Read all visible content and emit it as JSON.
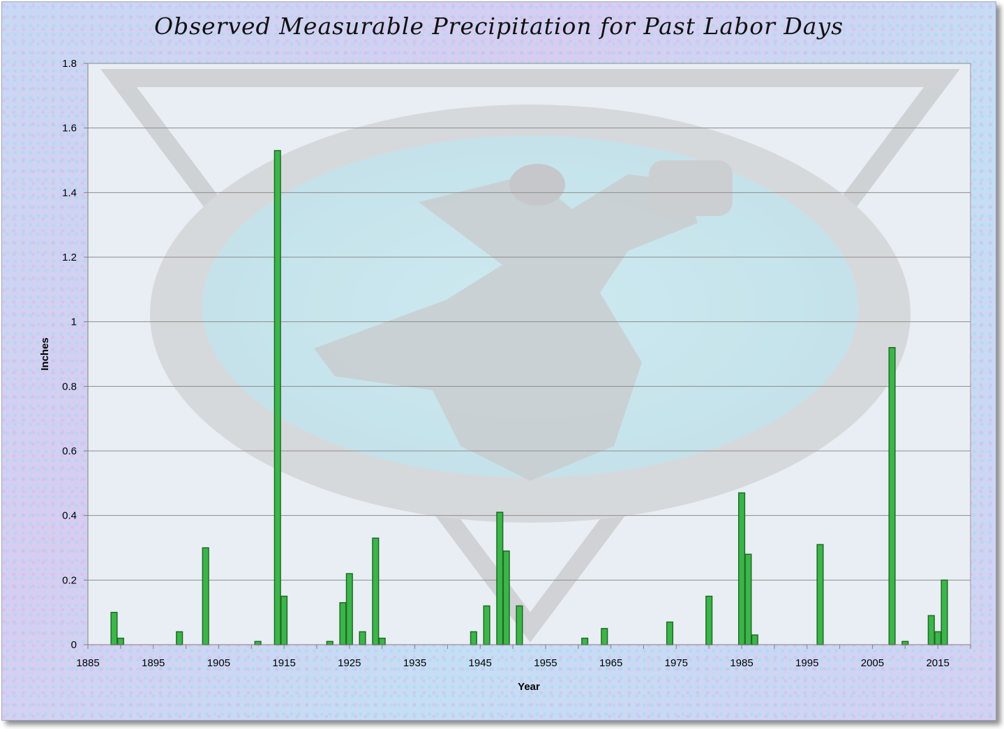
{
  "chart_data": {
    "type": "bar",
    "title": "Observed Measurable Precipitation for Past Labor Days",
    "xlabel": "Year",
    "ylabel": "Inches",
    "xlim": [
      1885,
      2020
    ],
    "ylim": [
      0,
      1.8
    ],
    "x_ticks": [
      "1885",
      "1895",
      "1905",
      "1915",
      "1925",
      "1935",
      "1945",
      "1955",
      "1965",
      "1975",
      "1985",
      "1995",
      "2005",
      "2015"
    ],
    "y_ticks": [
      "0",
      "0.2",
      "0.4",
      "0.6",
      "0.8",
      "1",
      "1.2",
      "1.4",
      "1.6",
      "1.8"
    ],
    "grid": true,
    "legend": "none",
    "bar_color": "#3cb54a",
    "bar_edge_color": "#1e6b24",
    "series": [
      {
        "x": [
          1889,
          1890,
          1899,
          1903,
          1911,
          1914,
          1915,
          1922,
          1924,
          1925,
          1927,
          1929,
          1930,
          1944,
          1946,
          1948,
          1949,
          1951,
          1961,
          1964,
          1974,
          1980,
          1985,
          1986,
          1987,
          1997,
          2008,
          2010,
          2014,
          2015,
          2016
        ],
        "values": [
          0.1,
          0.02,
          0.04,
          0.3,
          0.01,
          1.53,
          0.15,
          0.01,
          0.13,
          0.22,
          0.04,
          0.33,
          0.02,
          0.04,
          0.12,
          0.41,
          0.29,
          0.12,
          0.02,
          0.05,
          0.07,
          0.15,
          0.47,
          0.28,
          0.03,
          0.31,
          0.92,
          0.01,
          0.09,
          0.04,
          0.2
        ]
      }
    ]
  }
}
